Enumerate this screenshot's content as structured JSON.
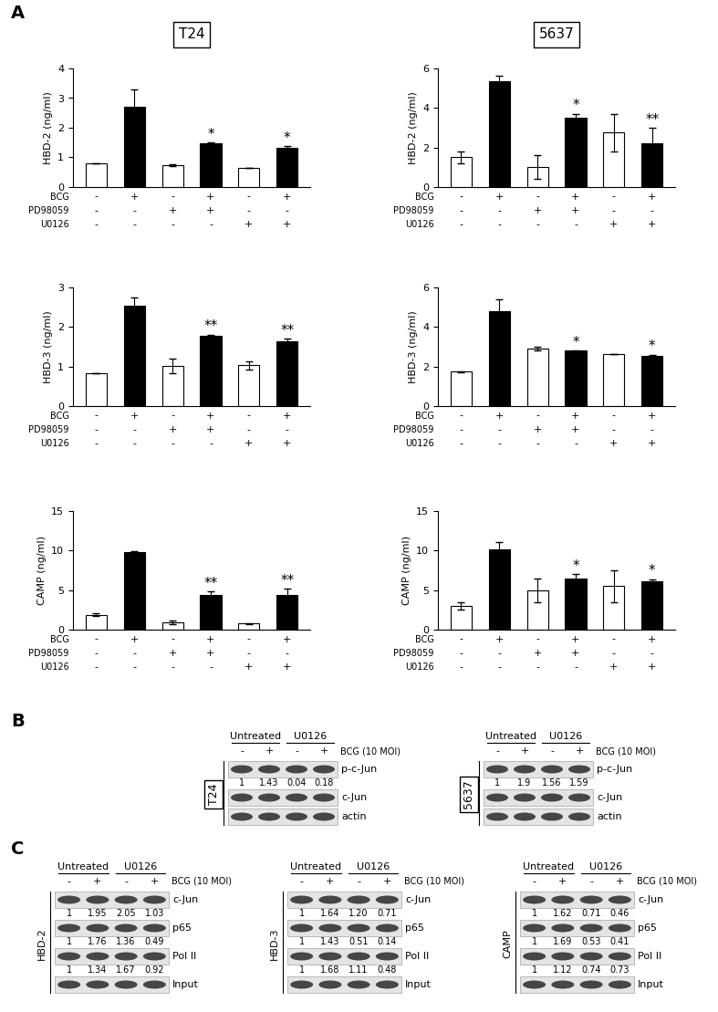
{
  "panel_A": {
    "label": "A",
    "columns": [
      "T24",
      "5637"
    ]
  },
  "chart_data": [
    {
      "type": "bar",
      "y_label": "HBD-2 (ng/ml)",
      "categories": [
        null,
        null,
        null,
        null,
        null,
        null
      ],
      "values": [
        0.8,
        2.7,
        0.75,
        1.47,
        0.65,
        1.33
      ],
      "errors": [
        0.0,
        0.6,
        0.03,
        0.03,
        0.0,
        0.05
      ],
      "colors": [
        "#ffffff",
        "#000000",
        "#ffffff",
        "#000000",
        "#ffffff",
        "#000000"
      ],
      "significance": [
        null,
        null,
        null,
        "*",
        null,
        "*"
      ],
      "ylim": [
        0,
        4
      ],
      "yticks": [
        0,
        1,
        2,
        3,
        4
      ],
      "treatments": [
        {
          "name": "BCG",
          "signs": [
            "-",
            "+",
            "-",
            "+",
            "-",
            "+"
          ]
        },
        {
          "name": "PD98059",
          "signs": [
            "-",
            "-",
            "+",
            "+",
            "-",
            "-"
          ]
        },
        {
          "name": "U0126",
          "signs": [
            "-",
            "-",
            "-",
            "-",
            "+",
            "+"
          ]
        }
      ]
    },
    {
      "type": "bar",
      "y_label": "HBD-3 (ng/ml)",
      "categories": [
        null,
        null,
        null,
        null,
        null,
        null
      ],
      "values": [
        0.82,
        2.55,
        1.02,
        1.78,
        1.03,
        1.65
      ],
      "errors": [
        0.0,
        0.2,
        0.18,
        0.03,
        0.1,
        0.05
      ],
      "colors": [
        "#ffffff",
        "#000000",
        "#ffffff",
        "#000000",
        "#ffffff",
        "#000000"
      ],
      "significance": [
        null,
        null,
        null,
        "**",
        null,
        "**"
      ],
      "ylim": [
        0,
        3
      ],
      "yticks": [
        0,
        1,
        2,
        3
      ],
      "treatments": [
        {
          "name": "BCG",
          "signs": [
            "-",
            "+",
            "-",
            "+",
            "-",
            "+"
          ]
        },
        {
          "name": "PD98059",
          "signs": [
            "-",
            "-",
            "+",
            "+",
            "-",
            "-"
          ]
        },
        {
          "name": "U0126",
          "signs": [
            "-",
            "-",
            "-",
            "-",
            "+",
            "+"
          ]
        }
      ]
    },
    {
      "type": "bar",
      "y_label": "CAMP (ng/ml)",
      "categories": [
        null,
        null,
        null,
        null,
        null,
        null
      ],
      "values": [
        1.9,
        9.8,
        0.9,
        4.4,
        0.8,
        4.4
      ],
      "errors": [
        0.2,
        0.1,
        0.2,
        0.4,
        0.05,
        0.8
      ],
      "colors": [
        "#ffffff",
        "#000000",
        "#ffffff",
        "#000000",
        "#ffffff",
        "#000000"
      ],
      "significance": [
        null,
        null,
        null,
        "**",
        null,
        "**"
      ],
      "ylim": [
        0,
        15
      ],
      "yticks": [
        0,
        5,
        10,
        15
      ],
      "treatments": [
        {
          "name": "BCG",
          "signs": [
            "-",
            "+",
            "-",
            "+",
            "-",
            "+"
          ]
        },
        {
          "name": "PD98059",
          "signs": [
            "-",
            "-",
            "+",
            "+",
            "-",
            "-"
          ]
        },
        {
          "name": "U0126",
          "signs": [
            "-",
            "-",
            "-",
            "-",
            "+",
            "+"
          ]
        }
      ]
    },
    {
      "type": "bar",
      "y_label": "HBD-2 (ng/ml)",
      "categories": [
        null,
        null,
        null,
        null,
        null,
        null
      ],
      "values": [
        1.5,
        5.35,
        1.0,
        3.5,
        2.75,
        2.2
      ],
      "errors": [
        0.3,
        0.3,
        0.6,
        0.2,
        0.95,
        0.8
      ],
      "colors": [
        "#ffffff",
        "#000000",
        "#ffffff",
        "#000000",
        "#ffffff",
        "#000000"
      ],
      "significance": [
        null,
        null,
        null,
        "*",
        null,
        "**"
      ],
      "ylim": [
        0,
        6
      ],
      "yticks": [
        0,
        2,
        4,
        6
      ],
      "treatments": [
        {
          "name": "BCG",
          "signs": [
            "-",
            "+",
            "-",
            "+",
            "-",
            "+"
          ]
        },
        {
          "name": "PD98059",
          "signs": [
            "-",
            "-",
            "+",
            "+",
            "-",
            "-"
          ]
        },
        {
          "name": "U0126",
          "signs": [
            "-",
            "-",
            "-",
            "-",
            "+",
            "+"
          ]
        }
      ]
    },
    {
      "type": "bar",
      "y_label": "HBD-3 (ng/ml)",
      "categories": [
        null,
        null,
        null,
        null,
        null,
        null
      ],
      "values": [
        1.75,
        4.8,
        2.9,
        2.8,
        2.65,
        2.55
      ],
      "errors": [
        0.02,
        0.6,
        0.1,
        0.02,
        0.0,
        0.05
      ],
      "colors": [
        "#ffffff",
        "#000000",
        "#ffffff",
        "#000000",
        "#ffffff",
        "#000000"
      ],
      "significance": [
        null,
        null,
        null,
        "*",
        null,
        "*"
      ],
      "ylim": [
        0,
        6
      ],
      "yticks": [
        0,
        2,
        4,
        6
      ],
      "treatments": [
        {
          "name": "BCG",
          "signs": [
            "-",
            "+",
            "-",
            "+",
            "-",
            "+"
          ]
        },
        {
          "name": "PD98059",
          "signs": [
            "-",
            "-",
            "+",
            "+",
            "-",
            "-"
          ]
        },
        {
          "name": "U0126",
          "signs": [
            "-",
            "-",
            "-",
            "-",
            "+",
            "+"
          ]
        }
      ]
    },
    {
      "type": "bar",
      "y_label": "CAMP (ng/ml)",
      "categories": [
        null,
        null,
        null,
        null,
        null,
        null
      ],
      "values": [
        3.0,
        10.2,
        5.0,
        6.5,
        5.5,
        6.1
      ],
      "errors": [
        0.5,
        0.9,
        1.5,
        0.5,
        2.0,
        0.3
      ],
      "colors": [
        "#ffffff",
        "#000000",
        "#ffffff",
        "#000000",
        "#ffffff",
        "#000000"
      ],
      "significance": [
        null,
        null,
        null,
        "*",
        null,
        "*"
      ],
      "ylim": [
        0,
        15
      ],
      "yticks": [
        0,
        5,
        10,
        15
      ],
      "treatments": [
        {
          "name": "BCG",
          "signs": [
            "-",
            "+",
            "-",
            "+",
            "-",
            "+"
          ]
        },
        {
          "name": "PD98059",
          "signs": [
            "-",
            "-",
            "+",
            "+",
            "-",
            "-"
          ]
        },
        {
          "name": "U0126",
          "signs": [
            "-",
            "-",
            "-",
            "-",
            "+",
            "+"
          ]
        }
      ]
    }
  ],
  "panel_B": {
    "label": "B",
    "blots": [
      {
        "side_label": "T24",
        "groups": [
          "Untreated",
          "U0126"
        ],
        "treatment": "BCG (10 MOI)",
        "signs": [
          "-",
          "+",
          "-",
          "+"
        ],
        "rows": [
          {
            "name": "p-c-Jun",
            "quant": [
              "1",
              "1.43",
              "0.04",
              "0.18"
            ]
          },
          {
            "name": "c-Jun"
          },
          {
            "name": "actin"
          }
        ]
      },
      {
        "side_label": "5637",
        "groups": [
          "Untreated",
          "U0126"
        ],
        "treatment": "BCG (10 MOI)",
        "signs": [
          "-",
          "+",
          "-",
          "+"
        ],
        "rows": [
          {
            "name": "p-c-Jun",
            "quant": [
              "1",
              "1.9",
              "1.56",
              "1.59"
            ]
          },
          {
            "name": "c-Jun"
          },
          {
            "name": "actin"
          }
        ]
      }
    ]
  },
  "panel_C": {
    "label": "C",
    "blots": [
      {
        "side_label": "HBD-2",
        "groups": [
          "Untreated",
          "U0126"
        ],
        "treatment": "BCG (10 MOI)",
        "signs": [
          "-",
          "+",
          "-",
          "+"
        ],
        "rows": [
          {
            "name": "c-Jun",
            "quant": [
              "1",
              "1.95",
              "2.05",
              "1.03"
            ]
          },
          {
            "name": "p65",
            "quant": [
              "1",
              "1.76",
              "1.36",
              "0.49"
            ]
          },
          {
            "name": "Pol II",
            "quant": [
              "1",
              "1.34",
              "1.67",
              "0.92"
            ]
          },
          {
            "name": "Input"
          }
        ]
      },
      {
        "side_label": "HBD-3",
        "groups": [
          "Untreated",
          "U0126"
        ],
        "treatment": "BCG (10 MOI)",
        "signs": [
          "-",
          "+",
          "-",
          "+"
        ],
        "rows": [
          {
            "name": "c-Jun",
            "quant": [
              "1",
              "1.64",
              "1.20",
              "0.71"
            ]
          },
          {
            "name": "p65",
            "quant": [
              "1",
              "1.43",
              "0.51",
              "0.14"
            ]
          },
          {
            "name": "Pol II",
            "quant": [
              "1",
              "1.68",
              "1.11",
              "0.48"
            ]
          },
          {
            "name": "Input"
          }
        ]
      },
      {
        "side_label": "CAMP",
        "groups": [
          "Untreated",
          "U0126"
        ],
        "treatment": "BCG (10 MOI)",
        "signs": [
          "-",
          "+",
          "-",
          "+"
        ],
        "rows": [
          {
            "name": "c-Jun",
            "quant": [
              "1",
              "1.62",
              "0.71",
              "0.46"
            ]
          },
          {
            "name": "p65",
            "quant": [
              "1",
              "1.69",
              "0.53",
              "0.41"
            ]
          },
          {
            "name": "Pol II",
            "quant": [
              "1",
              "1.12",
              "0.74",
              "0.73"
            ]
          },
          {
            "name": "Input"
          }
        ]
      }
    ]
  }
}
